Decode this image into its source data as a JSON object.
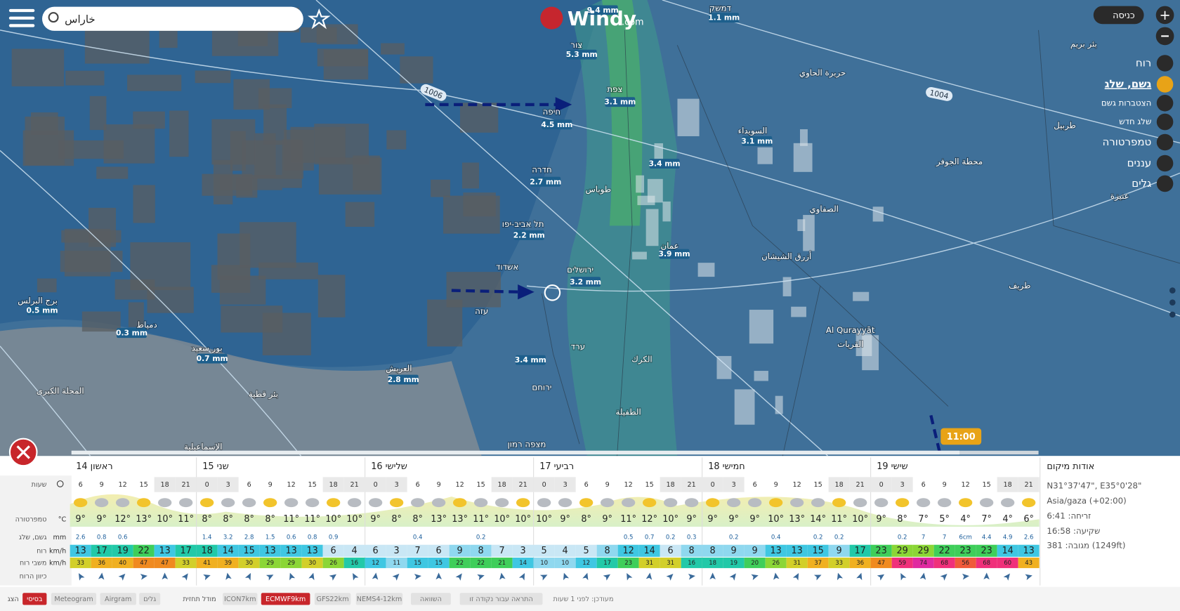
{
  "header": {
    "search": "خاراس",
    "logo": "Windy",
    "logo_suffix": ".com",
    "login": "כניסה"
  },
  "layers": [
    "רוח",
    "גשם, שלג",
    "הצטברות גשם",
    "שלג חדש",
    "טמפרטורה",
    "עננים",
    "גלים"
  ],
  "map": {
    "isobars": [
      "1006",
      "1004"
    ],
    "precip_labels": [
      "9.4 mm",
      "1.1 mm",
      "5.3 mm",
      "3.1 mm",
      "4.5 mm",
      "3.1 mm",
      "3.4 mm",
      "2.7 mm",
      "2.2 mm",
      "3.9 mm",
      "3.2 mm",
      "0.5 mm",
      "0.3 mm",
      "0.7 mm",
      "3.4 mm",
      "2.8 mm"
    ],
    "places": [
      "דמשק",
      "צור",
      "צפת",
      "חיפה",
      "חדרה",
      "תל אביב-יפו",
      "אשדוד",
      "ירושלים",
      "ערד",
      "ירוחם",
      "מצפה רמון",
      "עזה",
      "Al Qurayyāt",
      "القريات",
      "العريش",
      "بور سعيد",
      "دمياط",
      "برج البرلس",
      "المحلة الكبرى",
      "بئر قطية",
      "الإسماعيلية",
      "الطفيلة",
      "الكرك",
      "عمان",
      "طوباس",
      "السويداء",
      "حريرة الحاوي",
      "الصفاوي",
      "محطة الجوفر",
      "طريف",
      "أزرق الشيشان",
      "عنيزة",
      "طربيل",
      "بئر بريم"
    ]
  },
  "timeline": {
    "time": "11:00"
  },
  "forecast": {
    "days": [
      "ראשון 14",
      "שני 15",
      "שלישי 16",
      "רביעי 17",
      "חמישי 18",
      "שישי 19"
    ],
    "row_labels": [
      "שעות",
      "טמפרטורה",
      "גשם, שלג",
      "רוח",
      "משבי רוח",
      "כיוון הרוח"
    ],
    "units": [
      "°C",
      "mm",
      "km/h",
      "km/h"
    ],
    "hours": [
      6,
      9,
      12,
      15,
      18,
      21,
      0,
      3,
      6,
      9,
      12,
      15,
      18,
      21,
      0,
      3,
      6,
      9,
      12,
      15,
      18,
      21,
      0,
      3,
      6,
      9,
      12,
      15,
      18,
      21,
      0,
      3,
      6,
      9,
      12,
      15,
      18,
      21,
      0,
      3,
      6,
      9,
      12,
      15,
      18,
      21
    ],
    "temperature": [
      "9°",
      "9°",
      "12°",
      "13°",
      "10°",
      "11°",
      "8°",
      "8°",
      "8°",
      "8°",
      "11°",
      "11°",
      "10°",
      "10°",
      "9°",
      "8°",
      "8°",
      "13°",
      "13°",
      "11°",
      "10°",
      "10°",
      "10°",
      "9°",
      "8°",
      "9°",
      "11°",
      "12°",
      "10°",
      "9°",
      "9°",
      "9°",
      "9°",
      "10°",
      "13°",
      "14°",
      "11°",
      "10°",
      "9°",
      "8°",
      "7°",
      "5°",
      "4°",
      "7°",
      "4°",
      "6°"
    ],
    "precipitation": [
      2.6,
      0.8,
      0.6,
      null,
      null,
      null,
      1.4,
      3.2,
      2.8,
      1.5,
      0.6,
      0.8,
      0.9,
      null,
      null,
      null,
      0.4,
      null,
      null,
      0.2,
      null,
      null,
      null,
      null,
      null,
      null,
      0.5,
      0.7,
      0.2,
      0.3,
      null,
      0.2,
      null,
      0.4,
      null,
      0.2,
      0.2,
      null,
      null,
      0.2,
      7,
      7,
      "6cm",
      4.4,
      4.9,
      2.6
    ],
    "wind": [
      13,
      17,
      19,
      22,
      13,
      17,
      18,
      14,
      15,
      13,
      13,
      13,
      6,
      4,
      6,
      3,
      7,
      6,
      9,
      8,
      7,
      3,
      5,
      4,
      5,
      8,
      12,
      14,
      6,
      8,
      8,
      9,
      9,
      13,
      13,
      15,
      9,
      17,
      23,
      29,
      29,
      22,
      23,
      23,
      14,
      13
    ],
    "gusts": [
      33,
      36,
      40,
      47,
      47,
      33,
      41,
      39,
      30,
      29,
      29,
      30,
      26,
      16,
      12,
      11,
      15,
      15,
      22,
      22,
      21,
      14,
      10,
      10,
      12,
      17,
      23,
      31,
      31,
      16,
      18,
      19,
      20,
      26,
      31,
      37,
      33,
      36,
      47,
      59,
      74,
      68,
      56,
      68,
      60,
      43
    ]
  },
  "location": {
    "title": "אודות מיקום",
    "coords": "N31°37'47\", E35°0'28\"",
    "timezone": "Asia/gaza (+02:00)",
    "sunrise": "זריחה: 6:41",
    "sunset": "שקיעה: 16:58",
    "elevation": "מגובה: 381 (1249ft)"
  },
  "footer": {
    "show": "הצג",
    "tabs": [
      "בסיסי",
      "Meteogram",
      "Airgram",
      "גלים"
    ],
    "model_label": "מודל תחזית",
    "models": [
      "ICON7km",
      "ECMWF9km",
      "GFS22km",
      "NEMS4-12km"
    ],
    "compare": "השוואה",
    "alert": "התראה עבור נקודה זו",
    "updated": "מעודכן: לפני 1 שעות"
  }
}
